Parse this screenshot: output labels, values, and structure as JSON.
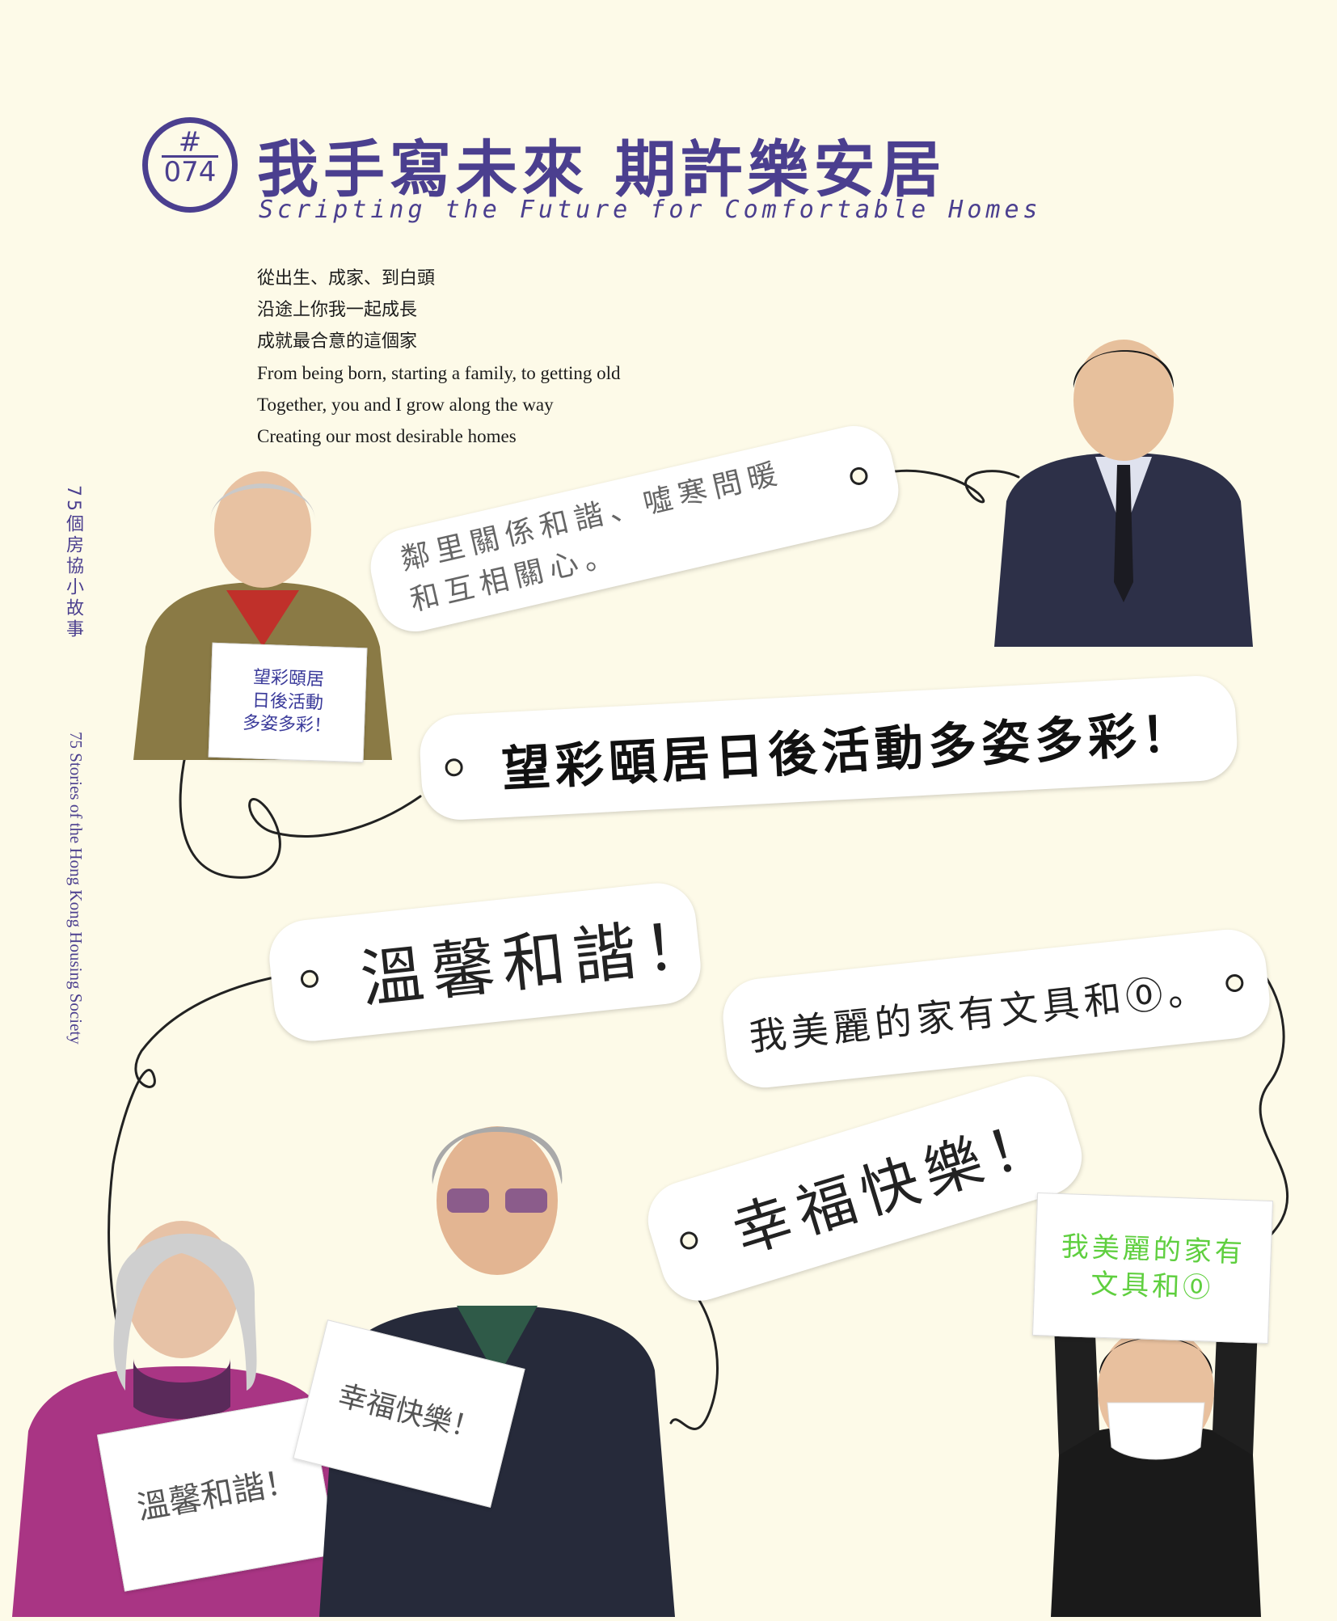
{
  "header": {
    "badge_hash": "#",
    "badge_number": "074",
    "title_zh": "我手寫未來 期許樂安居",
    "title_en": "Scripting the Future for Comfortable Homes"
  },
  "intro": {
    "zh": [
      "從出生、成家、到白頭",
      "沿途上你我一起成長",
      "成就最合意的這個家"
    ],
    "en": [
      "From being born, starting a family, to getting old",
      "Together, you and I grow along the way",
      "Creating our most desirable homes"
    ]
  },
  "side": {
    "zh": "75個房協小故事",
    "en": "75 Stories of the Hong Kong Housing Society"
  },
  "tags": {
    "neighbours_line1": "鄰里關係和諧、噓寒問暖",
    "neighbours_line2": "和互相關心。",
    "hope": "望彩頤居日後活動多姿多彩！",
    "warm": "溫馨和諧！",
    "beautiful": "我美麗的家有文具和⓪。",
    "happy": "幸福快樂！"
  },
  "signs": {
    "elder_woman": [
      "望彩頤居",
      "日後活動",
      "多姿多彩！"
    ],
    "woman_pink": "溫馨和諧！",
    "man_elder": "幸福快樂！",
    "boy_line1": "我美麗的家有",
    "boy_line2": "文具和⓪"
  },
  "colors": {
    "accent": "#4b3f8f",
    "background": "#fdfae8"
  }
}
